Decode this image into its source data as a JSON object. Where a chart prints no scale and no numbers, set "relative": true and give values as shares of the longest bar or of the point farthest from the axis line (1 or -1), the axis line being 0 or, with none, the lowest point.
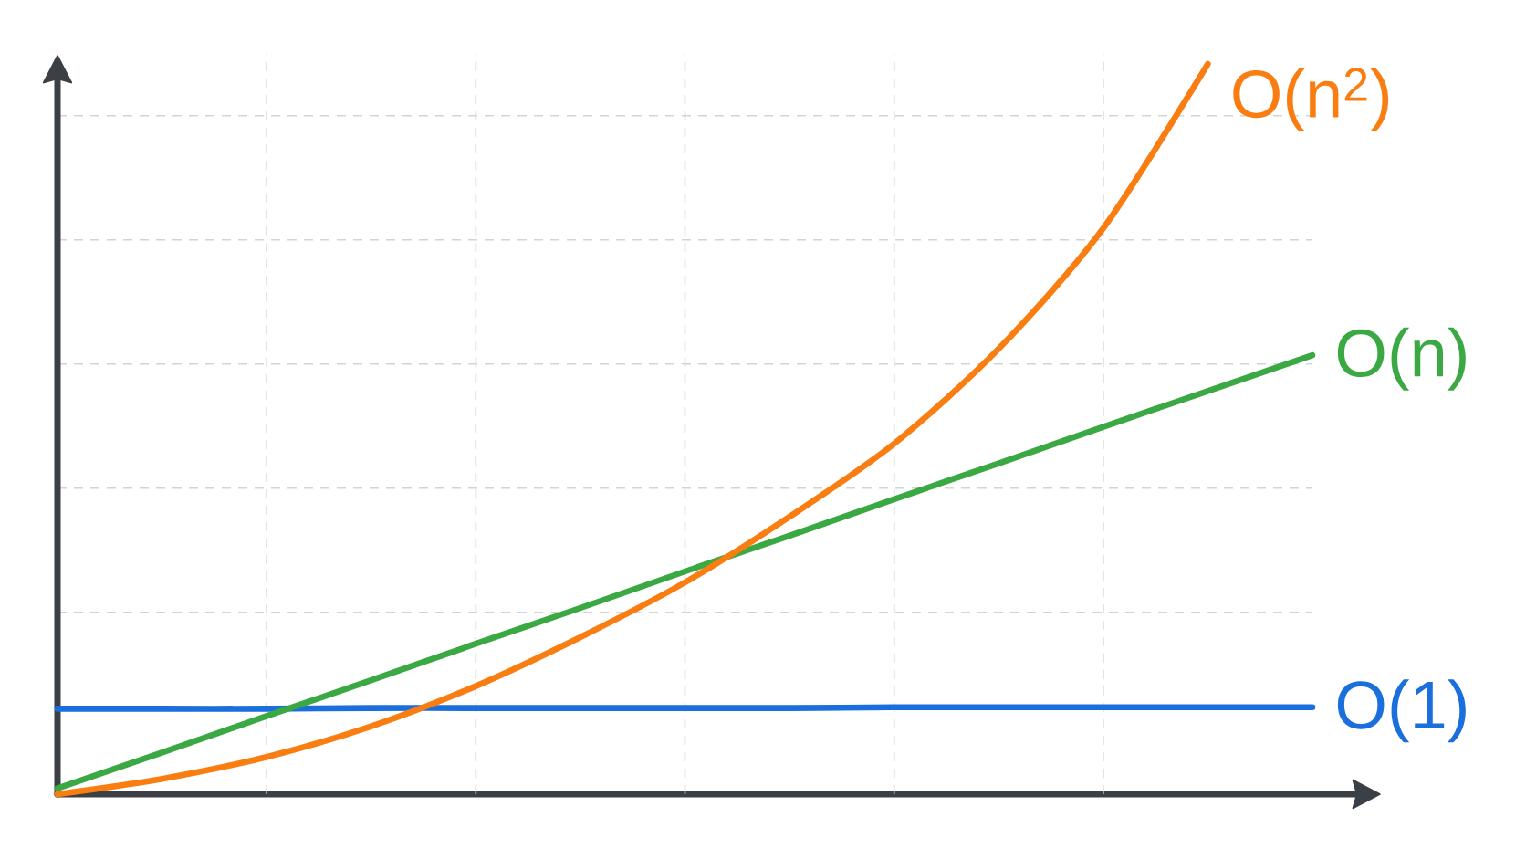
{
  "chart_data": {
    "type": "line",
    "relative": true,
    "grid": true,
    "categories": [
      null,
      null,
      null,
      null,
      null,
      null,
      null,
      null,
      null,
      null,
      null,
      null,
      null
    ],
    "series": [
      {
        "name": "O(1)",
        "color": "#1a6fdc",
        "values": [
          0.117,
          0.117,
          0.117,
          0.118,
          0.118,
          0.118,
          0.118,
          0.118,
          0.119,
          0.119,
          0.119,
          0.119,
          0.119
        ]
      },
      {
        "name": "O(n)",
        "color": "#3aa843",
        "values": [
          0.008,
          0.057,
          0.107,
          0.156,
          0.206,
          0.255,
          0.305,
          0.354,
          0.404,
          0.453,
          0.503,
          0.552,
          0.601
        ]
      },
      {
        "name": "O(n$^{2}$)",
        "color": "#f97d10",
        "values": [
          0,
          0.021,
          0.051,
          0.093,
          0.148,
          0.215,
          0.29,
          0.38,
          0.48,
          0.61,
          0.775,
          1.0,
          null
        ]
      }
    ]
  }
}
